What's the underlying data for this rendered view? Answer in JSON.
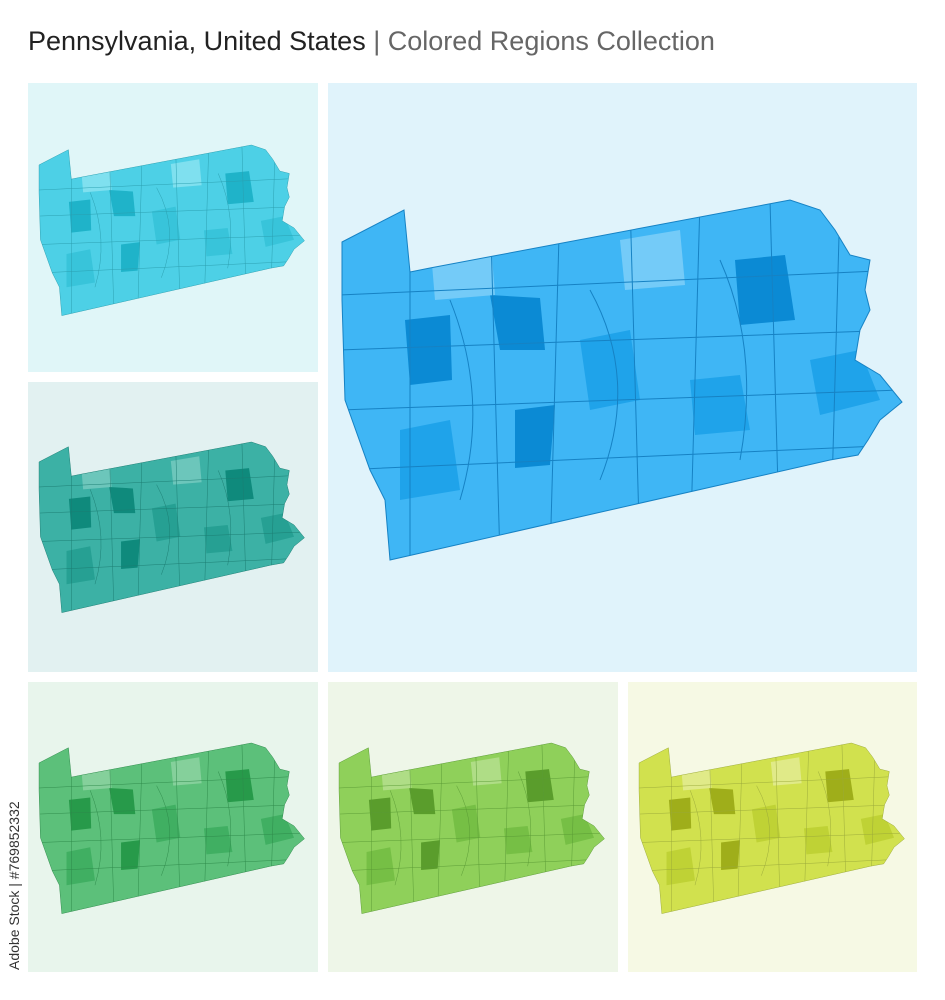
{
  "header": {
    "title": "Pennsylvania, United States",
    "separator": "|",
    "subtitle": "Colored Regions Collection"
  },
  "watermark": "Adobe Stock | #769852332"
}
